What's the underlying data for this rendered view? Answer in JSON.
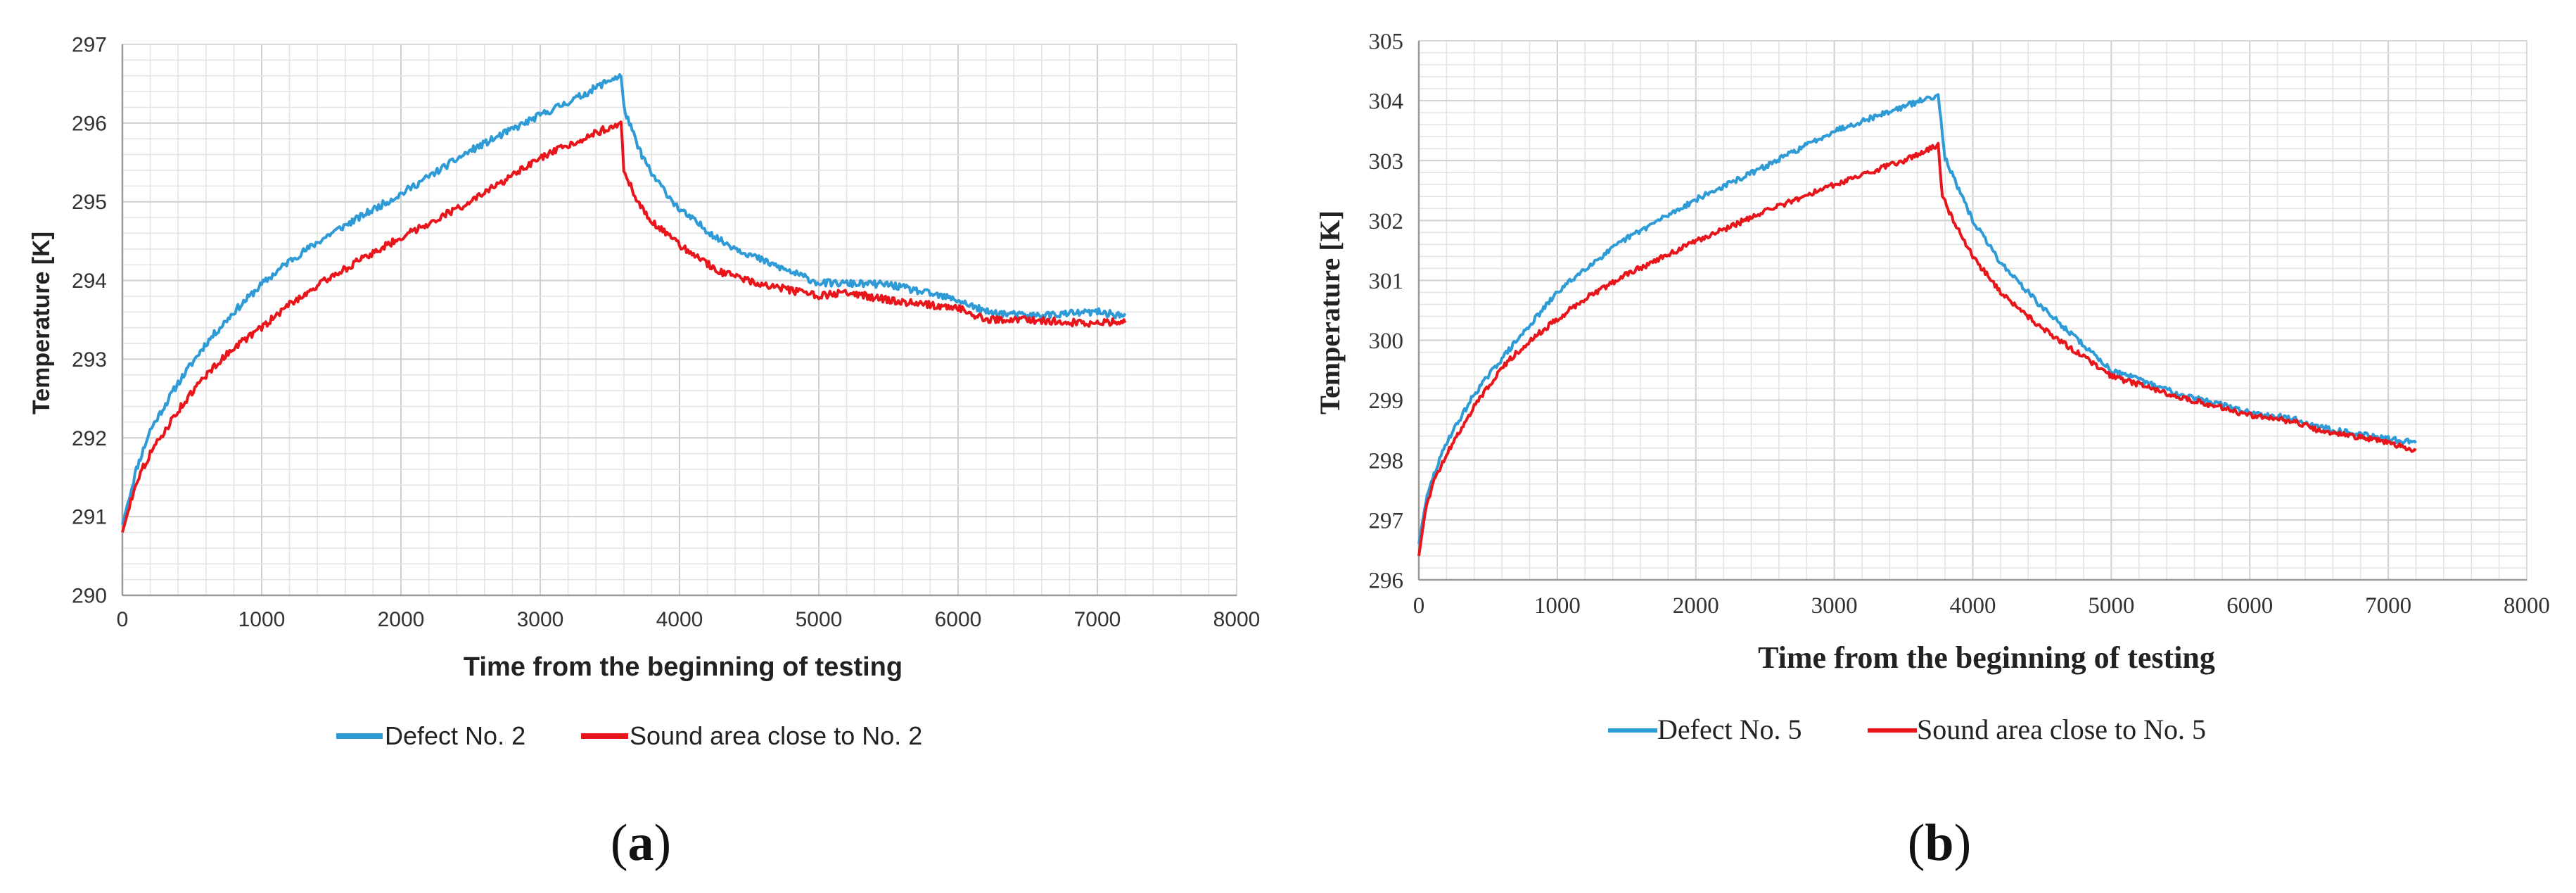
{
  "chart_data": [
    {
      "type": "line",
      "panel_label": "a",
      "xlabel": "Time from the beginning of testing",
      "ylabel": "Temperature [K]",
      "xlim": [
        0,
        8000
      ],
      "ylim": [
        290,
        297
      ],
      "xticks": [
        "0",
        "1000",
        "2000",
        "3000",
        "4000",
        "5000",
        "6000",
        "7000",
        "8000"
      ],
      "yticks": [
        "290",
        "291",
        "292",
        "293",
        "294",
        "295",
        "296",
        "297"
      ],
      "grid": true,
      "legend_position": "bottom",
      "series": [
        {
          "name": "Defect No. 2",
          "color": "#2f9bd6",
          "x": [
            0,
            100,
            200,
            400,
            600,
            800,
            1000,
            1200,
            1500,
            2000,
            2500,
            3000,
            3300,
            3500,
            3580,
            3600,
            3700,
            3800,
            4000,
            4300,
            4600,
            5000,
            5500,
            6000,
            6200,
            6500,
            7000,
            7200
          ],
          "y": [
            290.9,
            291.6,
            292.1,
            292.7,
            293.2,
            293.6,
            293.95,
            294.25,
            294.6,
            295.1,
            295.65,
            296.1,
            296.35,
            296.55,
            296.6,
            296.2,
            295.7,
            295.35,
            294.9,
            294.5,
            294.25,
            293.97,
            293.95,
            293.75,
            293.6,
            293.55,
            293.6,
            293.55
          ]
        },
        {
          "name": "Sound area close to No. 2",
          "color": "#e8151b",
          "x": [
            0,
            100,
            200,
            400,
            600,
            800,
            1000,
            1200,
            1500,
            2000,
            2500,
            3000,
            3300,
            3500,
            3580,
            3600,
            3700,
            3800,
            4000,
            4300,
            4600,
            5000,
            5200,
            5500,
            6000,
            6200,
            6500,
            7000,
            7200
          ],
          "y": [
            290.8,
            291.45,
            291.8,
            292.35,
            292.8,
            293.15,
            293.4,
            293.7,
            294.05,
            294.55,
            295.0,
            295.55,
            295.8,
            295.95,
            296.0,
            295.4,
            295.0,
            294.75,
            294.45,
            294.1,
            293.95,
            293.8,
            293.85,
            293.75,
            293.65,
            293.5,
            293.5,
            293.45,
            293.5
          ]
        }
      ]
    },
    {
      "type": "line",
      "panel_label": "b",
      "xlabel": "Time from the beginning of testing",
      "ylabel": "Temperature [K]",
      "xlim": [
        0,
        8000
      ],
      "ylim": [
        296,
        305
      ],
      "xticks": [
        "0",
        "1000",
        "2000",
        "3000",
        "4000",
        "5000",
        "6000",
        "7000",
        "8000"
      ],
      "yticks": [
        "296",
        "297",
        "298",
        "299",
        "300",
        "301",
        "302",
        "303",
        "304",
        "305"
      ],
      "grid": true,
      "legend_position": "bottom",
      "series": [
        {
          "name": "Defect No. 5",
          "color": "#2f9bd6",
          "x": [
            0,
            50,
            100,
            200,
            400,
            600,
            800,
            1000,
            1200,
            1500,
            2000,
            2500,
            3000,
            3500,
            3750,
            3800,
            3900,
            4000,
            4200,
            4500,
            5000,
            5500,
            6000,
            6300,
            6500,
            7000,
            7200
          ],
          "y": [
            296.6,
            297.3,
            297.7,
            298.3,
            299.1,
            299.7,
            300.25,
            300.8,
            301.2,
            301.7,
            302.35,
            302.9,
            303.5,
            303.9,
            304.1,
            303.05,
            302.5,
            302.0,
            301.3,
            300.55,
            299.5,
            299.1,
            298.8,
            298.7,
            298.55,
            298.35,
            298.3
          ]
        },
        {
          "name": "Sound area close to No. 5",
          "color": "#e8151b",
          "x": [
            0,
            50,
            100,
            200,
            400,
            600,
            800,
            1000,
            1200,
            1500,
            2000,
            2500,
            3000,
            3500,
            3750,
            3780,
            3850,
            4000,
            4200,
            4500,
            5000,
            5500,
            6000,
            6300,
            6500,
            7000,
            7200
          ],
          "y": [
            296.4,
            297.2,
            297.6,
            298.1,
            298.9,
            299.55,
            300.0,
            300.35,
            300.7,
            301.1,
            301.65,
            302.15,
            302.6,
            303.0,
            303.25,
            302.4,
            302.05,
            301.4,
            300.8,
            300.2,
            299.4,
            299.05,
            298.75,
            298.65,
            298.5,
            298.3,
            298.15
          ]
        }
      ]
    }
  ]
}
